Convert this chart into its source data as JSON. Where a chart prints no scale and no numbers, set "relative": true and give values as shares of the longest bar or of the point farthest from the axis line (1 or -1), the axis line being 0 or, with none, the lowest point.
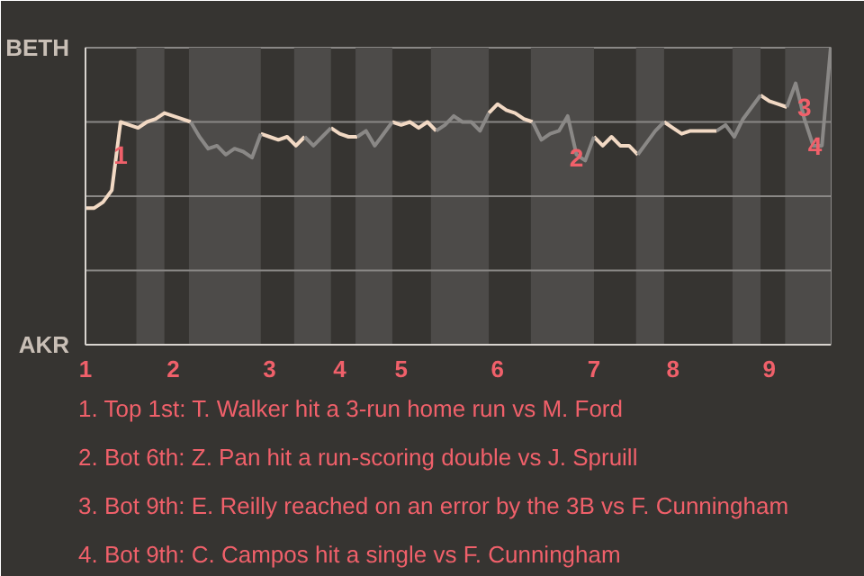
{
  "chart_data": {
    "type": "line",
    "relative": true,
    "categories": [
      "1",
      null,
      null,
      null,
      null,
      null,
      null,
      null,
      null,
      null,
      "2",
      null,
      null,
      null,
      null,
      null,
      null,
      null,
      null,
      null,
      null,
      "3",
      null,
      null,
      null,
      null,
      null,
      null,
      null,
      "4",
      null,
      null,
      null,
      null,
      null,
      null,
      "5",
      null,
      null,
      null,
      null,
      null,
      null,
      null,
      null,
      null,
      null,
      "6",
      null,
      null,
      null,
      null,
      null,
      null,
      null,
      null,
      null,
      null,
      "7",
      null,
      null,
      null,
      null,
      null,
      null,
      null,
      null,
      "8",
      null,
      null,
      null,
      null,
      null,
      null,
      null,
      null,
      null,
      null,
      "9",
      null,
      null,
      null,
      null,
      null,
      null,
      null
    ],
    "ref_lines": [
      {
        "axis": "y",
        "value": 0.25,
        "color": "#8a8886"
      },
      {
        "axis": "y",
        "value": 0.5,
        "color": "#8a8886"
      },
      {
        "axis": "y",
        "value": 0.75,
        "color": "#8a8886"
      }
    ],
    "series": [
      {
        "color": "#f2d9c4",
        "values": [
          0.46,
          0.46,
          0.48,
          0.52,
          0.75,
          0.74,
          0.73,
          0.75,
          0.76,
          0.78,
          0.77,
          0.76,
          0.75,
          null,
          null,
          null,
          null,
          null,
          null,
          null,
          0.71,
          0.7,
          0.69,
          0.7,
          0.67,
          0.7,
          null,
          null,
          0.73,
          0.71,
          0.7,
          0.7,
          null,
          null,
          null,
          0.75,
          0.74,
          0.75,
          0.73,
          0.75,
          0.72,
          null,
          null,
          null,
          null,
          null,
          0.78,
          0.81,
          0.79,
          0.78,
          0.76,
          0.75,
          null,
          null,
          null,
          null,
          null,
          null,
          0.7,
          0.67,
          0.7,
          0.67,
          0.67,
          0.64,
          null,
          null,
          0.75,
          0.73,
          0.71,
          0.72,
          0.72,
          0.72,
          0.72,
          null,
          null,
          null,
          null,
          0.84,
          0.82,
          0.81,
          0.8,
          null,
          null,
          null,
          null,
          null
        ]
      },
      {
        "color": "#8a8886",
        "values": [
          null,
          null,
          null,
          null,
          null,
          null,
          null,
          null,
          null,
          null,
          null,
          null,
          0.75,
          0.7,
          0.66,
          0.67,
          0.64,
          0.66,
          0.65,
          0.63,
          0.71,
          null,
          null,
          null,
          null,
          0.7,
          0.67,
          0.7,
          0.73,
          null,
          null,
          0.7,
          0.72,
          0.67,
          0.71,
          0.75,
          null,
          null,
          null,
          null,
          0.72,
          0.74,
          0.77,
          0.75,
          0.75,
          0.72,
          0.78,
          null,
          null,
          null,
          null,
          0.75,
          0.69,
          0.71,
          0.72,
          0.77,
          0.64,
          0.62,
          0.7,
          null,
          null,
          null,
          null,
          0.64,
          0.68,
          0.72,
          0.75,
          null,
          null,
          null,
          null,
          null,
          0.72,
          0.74,
          0.7,
          0.76,
          0.8,
          0.84,
          null,
          null,
          0.8,
          0.88,
          0.76,
          0.67,
          0.67,
          1.0
        ]
      }
    ],
    "annotations": [
      "BETH",
      "AKR",
      {
        "text": "1",
        "y": 0.64
      },
      {
        "text": "2",
        "y": 0.63
      },
      {
        "text": "3",
        "y": 0.8
      },
      {
        "text": "4",
        "y": 0.67
      },
      "1. Top 1st: T. Walker hit a 3-run home run vs M. Ford",
      "2. Bot 6th: Z. Pan hit a run-scoring double vs J. Spruill",
      "3. Bot 9th: E. Reilly reached on an error by the 3B vs F. Cunningham",
      "4. Bot 9th: C. Campos hit a single vs F. Cunningham"
    ]
  }
}
